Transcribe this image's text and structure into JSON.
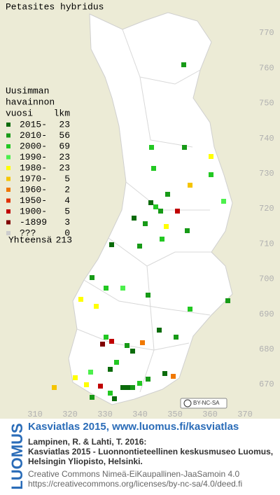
{
  "title": "Petasites hybridus",
  "legend": {
    "heading": [
      "Uusimman",
      "havainnon"
    ],
    "col_headers": [
      "vuosi",
      "lkm"
    ],
    "rows": [
      {
        "label": "2015-",
        "count": 23,
        "color": "#0b6b0b"
      },
      {
        "label": "2010-",
        "count": 56,
        "color": "#179a17"
      },
      {
        "label": "2000-",
        "count": 69,
        "color": "#22c822"
      },
      {
        "label": "1990-",
        "count": 23,
        "color": "#4cf04c"
      },
      {
        "label": "1980-",
        "count": 23,
        "color": "#ffff00"
      },
      {
        "label": "1970-",
        "count": 5,
        "color": "#f5c400"
      },
      {
        "label": "1960-",
        "count": 2,
        "color": "#f07800"
      },
      {
        "label": "1950-",
        "count": 4,
        "color": "#e03000"
      },
      {
        "label": "1900-",
        "count": 5,
        "color": "#c00000"
      },
      {
        "label": "-1899",
        "count": 3,
        "color": "#800000"
      },
      {
        "label": "???",
        "count": 0,
        "color": "#cccccc"
      }
    ],
    "total": {
      "label": "Yhteensä",
      "count": 213
    }
  },
  "grid": {
    "x_labels": [
      "310",
      "320",
      "330",
      "340",
      "350",
      "360",
      "370"
    ],
    "y_labels": [
      "670",
      "680",
      "690",
      "700",
      "710",
      "720",
      "730",
      "740",
      "750",
      "760",
      "770"
    ]
  },
  "license_badge": "BY-NC-SA",
  "logo": "LUOMUS",
  "footer": {
    "site": "Kasviatlas 2015, www.luomus.fi/kasviatlas",
    "citation": [
      "Lampinen, R. & Lahti, T. 2016:",
      "Kasviatlas 2015 - Luonnontieteellinen keskusmuseo Luomus,",
      "Helsingin Yliopisto, Helsinki."
    ],
    "license": [
      "Creative Commons Nimeä-EiKaupallinen-JaaSamoin 4.0",
      "https://creativecommons.org/licenses/by-nc-sa/4.0/deed.fi"
    ]
  }
}
